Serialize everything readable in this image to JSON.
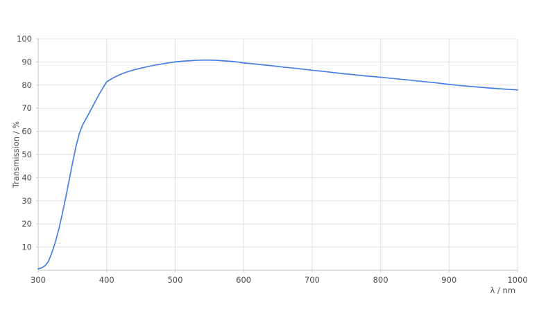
{
  "chart_data": {
    "type": "line",
    "title": "",
    "xlabel": "λ / nm",
    "ylabel": "Transmission / %",
    "xlim": [
      300,
      1000
    ],
    "ylim": [
      0,
      100
    ],
    "x_ticks": [
      300,
      400,
      500,
      600,
      700,
      800,
      900,
      1000
    ],
    "y_ticks": [
      10,
      20,
      30,
      40,
      50,
      60,
      70,
      80,
      90,
      100
    ],
    "grid": true,
    "legend": "none",
    "series": [
      {
        "name": "Transmission",
        "color": "#467de6",
        "x": [
          300,
          305,
          310,
          315,
          320,
          325,
          330,
          335,
          340,
          345,
          350,
          355,
          360,
          365,
          370,
          375,
          380,
          385,
          390,
          395,
          400,
          410,
          420,
          430,
          440,
          450,
          460,
          470,
          480,
          490,
          500,
          510,
          520,
          530,
          540,
          550,
          560,
          570,
          580,
          590,
          600,
          620,
          640,
          660,
          680,
          700,
          720,
          740,
          760,
          780,
          800,
          820,
          840,
          860,
          880,
          900,
          920,
          940,
          960,
          980,
          1000
        ],
        "y": [
          0.6,
          1.0,
          1.9,
          3.8,
          7.5,
          12.0,
          17.5,
          24.0,
          31.0,
          38.5,
          46.0,
          53.2,
          59.0,
          62.8,
          65.5,
          68.2,
          71.0,
          73.8,
          76.5,
          79.0,
          81.4,
          83.2,
          84.6,
          85.7,
          86.6,
          87.3,
          88.0,
          88.6,
          89.1,
          89.6,
          90.0,
          90.3,
          90.5,
          90.7,
          90.8,
          90.8,
          90.7,
          90.5,
          90.3,
          90.0,
          89.6,
          89.0,
          88.4,
          87.7,
          87.1,
          86.4,
          85.8,
          85.1,
          84.5,
          83.9,
          83.4,
          82.8,
          82.2,
          81.6,
          81.0,
          80.3,
          79.7,
          79.2,
          78.7,
          78.3,
          77.9
        ]
      }
    ]
  },
  "colors": {
    "line": "#467de6",
    "grid": "#e2e2e2",
    "axis": "#c4c4c4",
    "tick_text": "#4a4a4a",
    "title_text": "#4f4f4f",
    "background": "#ffffff"
  }
}
